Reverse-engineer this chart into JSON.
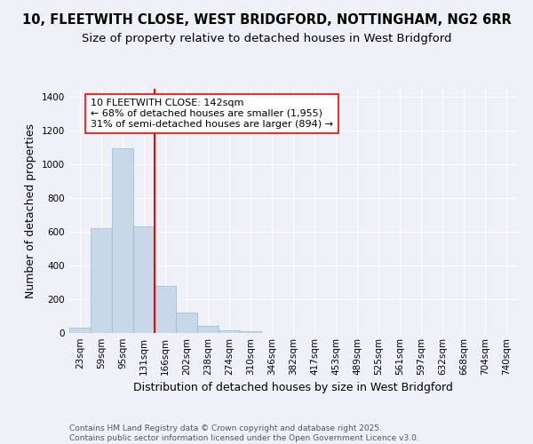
{
  "title_line1": "10, FLEETWITH CLOSE, WEST BRIDGFORD, NOTTINGHAM, NG2 6RR",
  "title_line2": "Size of property relative to detached houses in West Bridgford",
  "xlabel": "Distribution of detached houses by size in West Bridgford",
  "ylabel": "Number of detached properties",
  "footer_line1": "Contains HM Land Registry data © Crown copyright and database right 2025.",
  "footer_line2": "Contains public sector information licensed under the Open Government Licence v3.0.",
  "categories": [
    "23sqm",
    "59sqm",
    "95sqm",
    "131sqm",
    "166sqm",
    "202sqm",
    "238sqm",
    "274sqm",
    "310sqm",
    "346sqm",
    "382sqm",
    "417sqm",
    "453sqm",
    "489sqm",
    "525sqm",
    "561sqm",
    "597sqm",
    "632sqm",
    "668sqm",
    "704sqm",
    "740sqm"
  ],
  "values": [
    30,
    620,
    1095,
    635,
    278,
    120,
    40,
    18,
    10,
    0,
    0,
    0,
    0,
    0,
    0,
    0,
    0,
    0,
    0,
    0,
    0
  ],
  "bar_color": "#c8d8e8",
  "bar_edge_color": "#a0b8cc",
  "ylim": [
    0,
    1450
  ],
  "yticks": [
    0,
    200,
    400,
    600,
    800,
    1000,
    1200,
    1400
  ],
  "vline_x_idx": 3,
  "vline_color": "red",
  "annotation_text": "10 FLEETWITH CLOSE: 142sqm\n← 68% of detached houses are smaller (1,955)\n31% of semi-detached houses are larger (894) →",
  "background_color": "#eef2f8",
  "plot_bg_color": "#eef2f8",
  "grid_color": "#ffffff",
  "title_fontsize": 10.5,
  "subtitle_fontsize": 9.5,
  "axis_label_fontsize": 9,
  "tick_fontsize": 7.5,
  "annotation_fontsize": 8,
  "footer_fontsize": 6.5
}
